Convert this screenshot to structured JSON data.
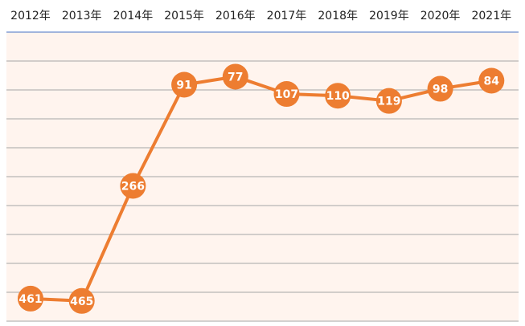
{
  "chart_data": {
    "type": "line",
    "categories": [
      "2012年",
      "2013年",
      "2014年",
      "2015年",
      "2016年",
      "2017年",
      "2018年",
      "2019年",
      "2020年",
      "2021年"
    ],
    "series": [
      {
        "values": [
          461,
          465,
          266,
          91,
          77,
          107,
          110,
          119,
          98,
          84
        ]
      }
    ],
    "y_axis": {
      "reversed": true,
      "ylim": [
        0,
        500
      ],
      "gridlines": true,
      "tick_labels_shown": false
    },
    "x_axis_position": "top",
    "data_labels": "inside-markers",
    "colors": {
      "line": "#ED7D31",
      "plot_background": "#FFF4EE",
      "gridline": "#A6A6A6",
      "label_text": "#FFFFFF"
    }
  }
}
